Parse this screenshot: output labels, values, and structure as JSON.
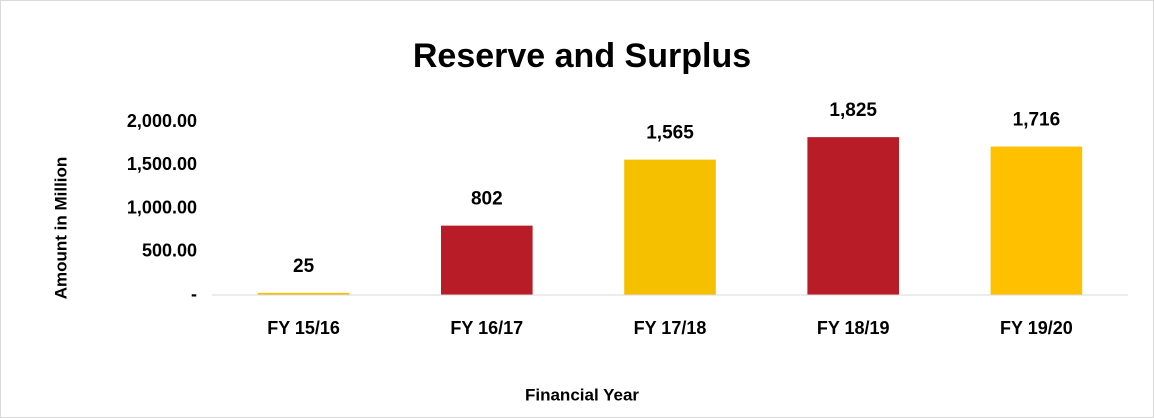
{
  "chart_data": {
    "type": "bar",
    "title": "Reserve and Surplus",
    "x_label": "Financial Year",
    "y_label": "Amount in Million",
    "categories": [
      "FY 15/16",
      "FY 16/17",
      "FY 17/18",
      "FY 18/19",
      "FY 19/20"
    ],
    "values": [
      25,
      802,
      1565,
      1825,
      1716
    ],
    "value_labels": [
      "25",
      "802",
      "1,565",
      "1,825",
      "1,716"
    ],
    "colors": [
      "#F5C000",
      "#B71C27",
      "#F5C000",
      "#B71C27",
      "#FFC000"
    ],
    "ylim": [
      0,
      2000
    ],
    "yticks": [
      {
        "value": 0,
        "label": "-"
      },
      {
        "value": 500,
        "label": "500.00"
      },
      {
        "value": 1000,
        "label": "1,000.00"
      },
      {
        "value": 1500,
        "label": "1,500.00"
      },
      {
        "value": 2000,
        "label": "2,000.00"
      }
    ],
    "grid": false
  }
}
